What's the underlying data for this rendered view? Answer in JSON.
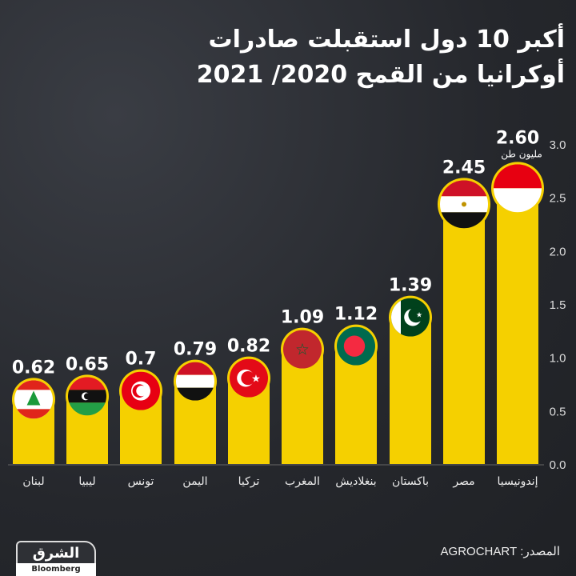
{
  "title_line1": "أكبر 10 دول استقبلت صادرات",
  "title_line2": "أوكرانيا من القمح 2020/ 2021",
  "source": "المصدر: AGROCHART",
  "logo": {
    "brand": "الشرق",
    "partner": "Bloomberg"
  },
  "colors": {
    "bar": "#f5d000",
    "background": "#2a2c31",
    "text": "#ffffff"
  },
  "chart_data": {
    "type": "bar",
    "unit_label": "مليون طن",
    "categories": [
      "لبنان",
      "ليبيا",
      "تونس",
      "اليمن",
      "تركيا",
      "المغرب",
      "بنغلاديش",
      "باكستان",
      "مصر",
      "إندونيسيا"
    ],
    "values": [
      0.62,
      0.65,
      0.7,
      0.79,
      0.82,
      1.09,
      1.12,
      1.39,
      2.45,
      2.6
    ],
    "value_labels": [
      "0.62",
      "0.65",
      "0.7",
      "0.79",
      "0.82",
      "1.09",
      "1.12",
      "1.39",
      "2.45",
      "2.60"
    ],
    "flag_icons": [
      "lebanon-flag",
      "libya-flag",
      "tunisia-flag",
      "yemen-flag",
      "turkey-flag",
      "morocco-flag",
      "bangladesh-flag",
      "pakistan-flag",
      "egypt-flag",
      "indonesia-flag"
    ],
    "ylim": [
      0,
      3.0
    ],
    "yticks": [
      "0.0",
      "0.5",
      "1.0",
      "1.5",
      "2.0",
      "2.5",
      "3.0"
    ],
    "ytick_values": [
      0,
      0.5,
      1,
      1.5,
      2,
      2.5,
      3
    ],
    "y_axis_position": "right",
    "grid": false
  }
}
